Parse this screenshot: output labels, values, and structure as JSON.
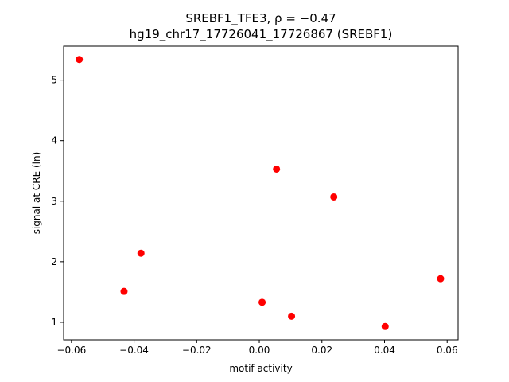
{
  "chart_data": {
    "type": "scatter",
    "title_line1": "SREBF1_TFE3, ρ = −0.47",
    "title_line2": "hg19_chr17_17726041_17726867 (SREBF1)",
    "xlabel": "motif activity",
    "ylabel": "signal at CRE (ln)",
    "xlim": [
      -0.0625,
      0.0635
    ],
    "ylim": [
      0.71,
      5.56
    ],
    "x_ticks": [
      -0.06,
      -0.04,
      -0.02,
      0.0,
      0.02,
      0.04,
      0.06
    ],
    "x_tick_labels": [
      "−0.06",
      "−0.04",
      "−0.02",
      "0.00",
      "0.02",
      "0.04",
      "0.06"
    ],
    "y_ticks": [
      1,
      2,
      3,
      4,
      5
    ],
    "y_tick_labels": [
      "1",
      "2",
      "3",
      "4",
      "5"
    ],
    "point_color": "#ff0000",
    "grid": false,
    "legend": "none",
    "points": [
      {
        "x": -0.0575,
        "y": 5.34
      },
      {
        "x": -0.0432,
        "y": 1.51
      },
      {
        "x": -0.0378,
        "y": 2.14
      },
      {
        "x": 0.0009,
        "y": 1.33
      },
      {
        "x": 0.0055,
        "y": 3.53
      },
      {
        "x": 0.0103,
        "y": 1.1
      },
      {
        "x": 0.0238,
        "y": 3.07
      },
      {
        "x": 0.0402,
        "y": 0.93
      },
      {
        "x": 0.0579,
        "y": 1.72
      }
    ]
  }
}
